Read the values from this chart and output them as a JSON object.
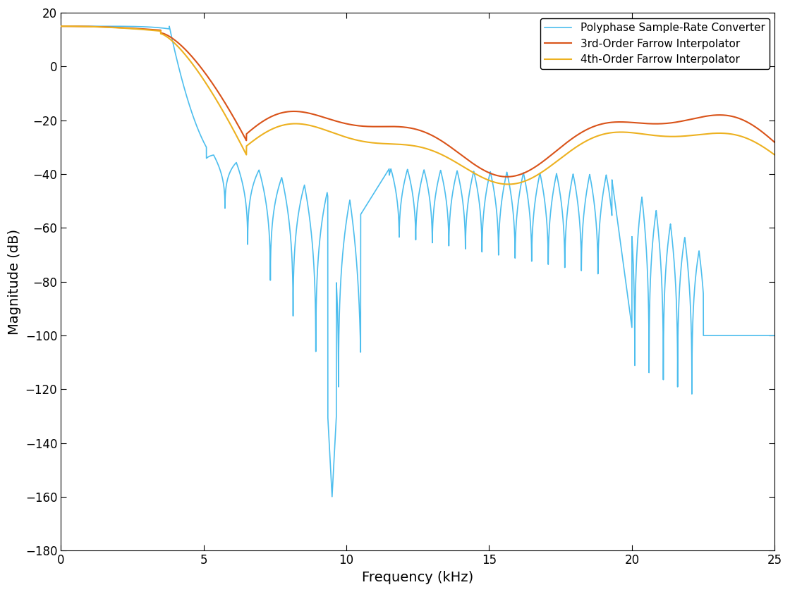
{
  "title": "",
  "xlabel": "Frequency (kHz)",
  "ylabel": "Magnitude (dB)",
  "xlim": [
    0,
    25
  ],
  "ylim": [
    -180,
    20
  ],
  "yticks": [
    20,
    0,
    -20,
    -40,
    -60,
    -80,
    -100,
    -120,
    -140,
    -160,
    -180
  ],
  "xticks": [
    0,
    5,
    10,
    15,
    20,
    25
  ],
  "colors": {
    "polyphase": "#4DBEEE",
    "farrow3": "#D95319",
    "farrow4": "#EDB120"
  },
  "legend_labels": [
    "Polyphase Sample-Rate Converter",
    "3rd-Order Farrow Interpolator",
    "4th-Order Farrow Interpolator"
  ],
  "line_width": 1.2,
  "background_color": "#ffffff"
}
